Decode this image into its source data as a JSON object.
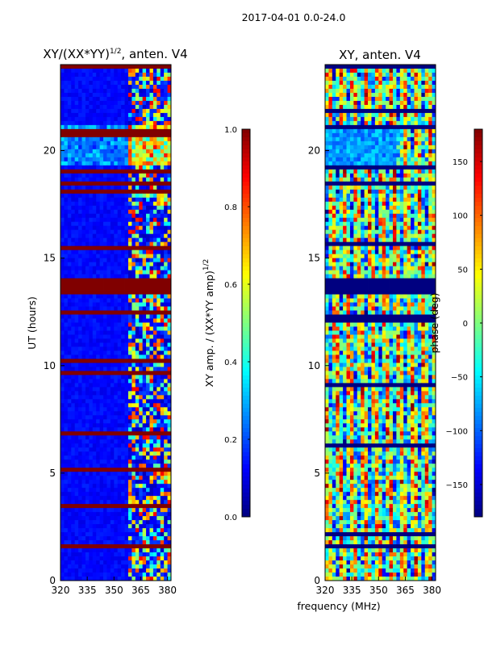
{
  "figure": {
    "suptitle": "2017-04-01 0.0-24.0",
    "shared_xlabel": "frequency (MHz)"
  },
  "chart_data": [
    {
      "type": "heatmap",
      "title": "XY/(XX*YY)",
      "title_exponent": "1/2",
      "title_suffix": ", anten. V4",
      "ylabel": "UT (hours)",
      "xlabel": "frequency (MHz)",
      "xlim": [
        320,
        382
      ],
      "ylim": [
        0,
        24
      ],
      "x_ticks": [
        320,
        335,
        350,
        365,
        380
      ],
      "y_ticks": [
        0,
        5,
        10,
        15,
        20
      ],
      "colormap": "jet",
      "colorbar": {
        "label": "XY amp. / (XX*YY amp)",
        "label_exponent": "1/2",
        "range": [
          0.0,
          1.0
        ],
        "ticks": [
          "0.0",
          "0.2",
          "0.4",
          "0.6",
          "0.8",
          "1.0"
        ]
      },
      "features": {
        "flagged_hour_bands": [
          [
            23.8,
            24.0
          ],
          [
            13.4,
            14.0
          ],
          [
            12.3,
            12.6
          ],
          [
            3.3,
            3.6
          ],
          [
            1.5,
            1.6
          ]
        ],
        "bright_frequency_range": [
          359,
          382
        ],
        "bright_time_interval": [
          19.4,
          21.2
        ],
        "typical_low_value": 0.1
      }
    },
    {
      "type": "heatmap",
      "title": "XY, anten. V4",
      "ylabel": "",
      "xlabel": "frequency (MHz)",
      "xlim": [
        320,
        382
      ],
      "ylim": [
        0,
        24
      ],
      "x_ticks": [
        320,
        335,
        350,
        365,
        380
      ],
      "y_ticks": [
        0,
        5,
        10,
        15,
        20
      ],
      "colormap": "jet",
      "colorbar": {
        "label": "phase (deg)",
        "range": [
          -180,
          180
        ],
        "ticks": [
          "−150",
          "−100",
          "−50",
          "0",
          "50",
          "100",
          "150"
        ]
      },
      "features": {
        "blank_hour_bands": [
          [
            13.4,
            14.0
          ],
          [
            19.2,
            19.4
          ],
          [
            1.5,
            1.6
          ],
          [
            23.8,
            24.0
          ]
        ],
        "coherent_time_interval": [
          19.4,
          21.2
        ],
        "typical_phase_range": [
          -90,
          90
        ]
      }
    }
  ]
}
